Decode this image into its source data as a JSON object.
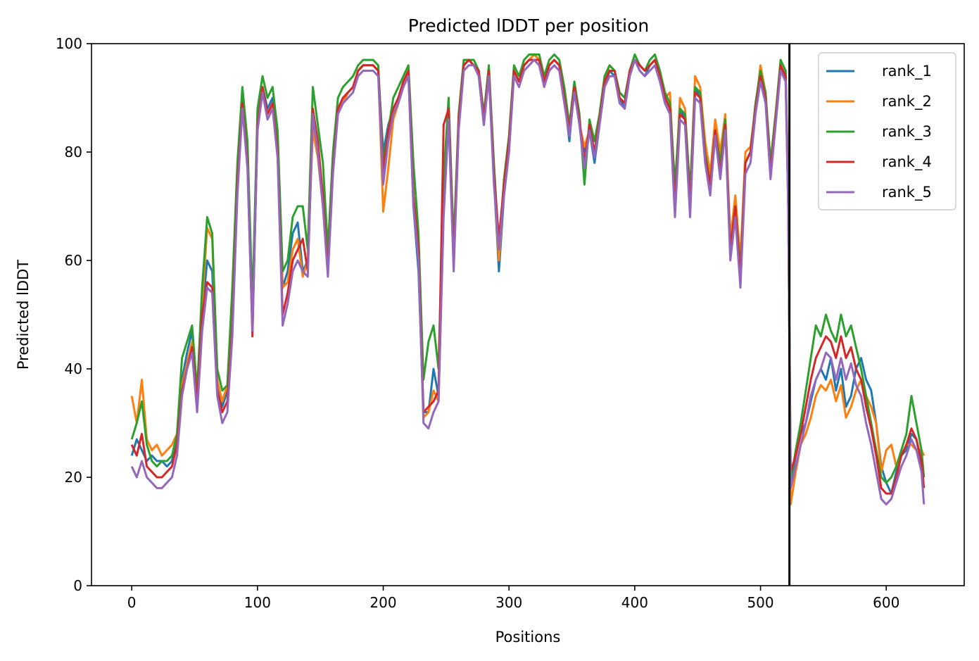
{
  "chart_data": {
    "type": "line",
    "title": "Predicted lDDT per position",
    "xlabel": "Positions",
    "ylabel": "Predicted lDDT",
    "xlim": [
      -32,
      662
    ],
    "ylim": [
      0,
      100
    ],
    "xticks": [
      0,
      100,
      200,
      300,
      400,
      500,
      600
    ],
    "yticks": [
      0,
      20,
      40,
      60,
      80,
      100
    ],
    "grid": false,
    "legend_position": "top-right",
    "vline": 523,
    "series_colors": {
      "rank_1": "#1f77b4",
      "rank_2": "#ff7f0e",
      "rank_3": "#2ca02c",
      "rank_4": "#d62728",
      "rank_5": "#9467bd"
    },
    "x": [
      0,
      4,
      8,
      12,
      16,
      20,
      24,
      28,
      32,
      36,
      40,
      44,
      48,
      52,
      56,
      60,
      64,
      68,
      72,
      76,
      80,
      84,
      88,
      92,
      96,
      100,
      104,
      108,
      112,
      116,
      120,
      124,
      128,
      132,
      136,
      140,
      144,
      148,
      152,
      156,
      160,
      164,
      168,
      172,
      176,
      180,
      184,
      188,
      192,
      196,
      200,
      204,
      208,
      212,
      216,
      220,
      224,
      228,
      232,
      236,
      240,
      244,
      248,
      252,
      256,
      260,
      264,
      268,
      272,
      276,
      280,
      284,
      288,
      292,
      296,
      300,
      304,
      308,
      312,
      316,
      320,
      324,
      328,
      332,
      336,
      340,
      344,
      348,
      352,
      356,
      360,
      364,
      368,
      372,
      376,
      380,
      384,
      388,
      392,
      396,
      400,
      404,
      408,
      412,
      416,
      420,
      424,
      428,
      432,
      436,
      440,
      444,
      448,
      452,
      456,
      460,
      464,
      468,
      472,
      476,
      480,
      484,
      488,
      492,
      496,
      500,
      504,
      508,
      512,
      516,
      520,
      522,
      524,
      528,
      532,
      536,
      540,
      544,
      548,
      552,
      556,
      560,
      564,
      568,
      572,
      576,
      580,
      584,
      588,
      592,
      596,
      600,
      604,
      608,
      612,
      616,
      620,
      624,
      628,
      630
    ],
    "series": [
      {
        "name": "rank_1",
        "values": [
          24,
          27,
          25,
          23,
          24,
          23,
          23,
          22,
          23,
          28,
          38,
          43,
          47,
          35,
          50,
          60,
          58,
          38,
          33,
          36,
          50,
          75,
          90,
          80,
          50,
          85,
          92,
          88,
          90,
          82,
          55,
          58,
          65,
          67,
          58,
          60,
          85,
          80,
          70,
          60,
          78,
          88,
          90,
          91,
          92,
          95,
          96,
          96,
          96,
          95,
          80,
          85,
          88,
          90,
          93,
          95,
          70,
          58,
          32,
          32,
          40,
          35,
          70,
          88,
          60,
          85,
          96,
          97,
          96,
          94,
          85,
          95,
          75,
          58,
          72,
          80,
          95,
          93,
          96,
          97,
          98,
          97,
          93,
          96,
          97,
          96,
          90,
          82,
          92,
          85,
          80,
          84,
          78,
          85,
          92,
          95,
          94,
          90,
          88,
          94,
          97,
          95,
          94,
          96,
          97,
          94,
          90,
          88,
          70,
          88,
          86,
          70,
          92,
          90,
          80,
          74,
          85,
          78,
          85,
          62,
          70,
          58,
          78,
          80,
          88,
          95,
          90,
          77,
          86,
          96,
          93,
          70,
          19,
          24,
          28,
          30,
          34,
          38,
          40,
          38,
          42,
          36,
          40,
          33,
          35,
          40,
          42,
          38,
          36,
          30,
          22,
          19,
          17,
          21,
          24,
          25,
          28,
          27,
          22,
          22
        ]
      },
      {
        "name": "rank_2",
        "values": [
          35,
          30,
          38,
          27,
          25,
          26,
          24,
          25,
          26,
          28,
          37,
          41,
          45,
          33,
          52,
          66,
          64,
          38,
          34,
          37,
          50,
          73,
          89,
          80,
          49,
          84,
          91,
          87,
          89,
          80,
          55,
          56,
          62,
          64,
          57,
          60,
          84,
          79,
          70,
          60,
          77,
          88,
          89,
          91,
          92,
          95,
          96,
          96,
          96,
          95,
          69,
          77,
          86,
          89,
          92,
          95,
          72,
          60,
          31,
          32,
          36,
          34,
          69,
          87,
          59,
          85,
          96,
          97,
          96,
          94,
          85,
          95,
          75,
          60,
          73,
          81,
          95,
          93,
          96,
          97,
          98,
          97,
          92,
          96,
          97,
          96,
          90,
          83,
          92,
          85,
          81,
          84,
          80,
          86,
          93,
          96,
          95,
          90,
          89,
          95,
          97,
          96,
          95,
          96,
          97,
          94,
          90,
          91,
          72,
          90,
          88,
          72,
          94,
          92,
          82,
          76,
          86,
          80,
          87,
          64,
          72,
          60,
          80,
          81,
          88,
          96,
          91,
          78,
          87,
          96,
          94,
          72,
          15,
          21,
          26,
          28,
          31,
          35,
          37,
          36,
          38,
          34,
          37,
          31,
          33,
          36,
          38,
          35,
          33,
          30,
          21,
          25,
          26,
          22,
          24,
          26,
          26,
          25,
          25,
          24
        ]
      },
      {
        "name": "rank_3",
        "values": [
          27,
          30,
          34,
          26,
          23,
          22,
          23,
          23,
          24,
          28,
          42,
          45,
          48,
          36,
          55,
          68,
          65,
          40,
          36,
          37,
          55,
          78,
          92,
          82,
          52,
          88,
          94,
          90,
          92,
          84,
          58,
          60,
          68,
          70,
          70,
          62,
          92,
          85,
          78,
          62,
          80,
          90,
          92,
          93,
          94,
          96,
          97,
          97,
          97,
          96,
          78,
          84,
          90,
          92,
          94,
          96,
          78,
          65,
          38,
          45,
          48,
          40,
          75,
          90,
          63,
          87,
          97,
          97,
          97,
          95,
          87,
          96,
          78,
          62,
          75,
          83,
          96,
          94,
          97,
          98,
          98,
          98,
          94,
          97,
          98,
          97,
          92,
          85,
          93,
          87,
          74,
          86,
          82,
          87,
          94,
          96,
          95,
          91,
          90,
          95,
          98,
          96,
          95,
          97,
          98,
          95,
          91,
          89,
          74,
          88,
          87,
          73,
          92,
          91,
          80,
          74,
          84,
          78,
          86,
          62,
          70,
          58,
          78,
          80,
          89,
          95,
          91,
          78,
          87,
          97,
          95,
          74,
          19,
          25,
          30,
          36,
          42,
          48,
          46,
          50,
          47,
          45,
          50,
          46,
          48,
          44,
          40,
          35,
          30,
          25,
          20,
          19,
          20,
          22,
          25,
          28,
          35,
          30,
          25,
          20
        ]
      },
      {
        "name": "rank_4",
        "values": [
          26,
          24,
          28,
          22,
          21,
          20,
          20,
          21,
          22,
          26,
          36,
          40,
          44,
          34,
          50,
          56,
          55,
          36,
          32,
          34,
          48,
          74,
          89,
          78,
          46,
          85,
          92,
          87,
          89,
          80,
          50,
          54,
          60,
          62,
          64,
          58,
          88,
          82,
          72,
          58,
          77,
          88,
          90,
          91,
          92,
          95,
          96,
          96,
          96,
          95,
          76,
          84,
          88,
          90,
          93,
          95,
          72,
          62,
          32,
          33,
          34,
          36,
          85,
          88,
          60,
          86,
          96,
          97,
          96,
          95,
          86,
          95,
          76,
          64,
          74,
          82,
          95,
          93,
          96,
          97,
          97,
          97,
          93,
          96,
          97,
          96,
          90,
          84,
          92,
          86,
          78,
          85,
          80,
          86,
          93,
          95,
          95,
          90,
          89,
          95,
          97,
          96,
          95,
          96,
          97,
          94,
          90,
          88,
          70,
          87,
          86,
          70,
          91,
          90,
          79,
          74,
          84,
          76,
          85,
          62,
          70,
          57,
          78,
          80,
          88,
          94,
          90,
          76,
          86,
          96,
          94,
          72,
          21,
          24,
          28,
          33,
          38,
          42,
          44,
          46,
          45,
          42,
          46,
          42,
          44,
          40,
          38,
          33,
          29,
          24,
          18,
          17,
          17,
          20,
          24,
          26,
          29,
          27,
          23,
          18
        ]
      },
      {
        "name": "rank_5",
        "values": [
          22,
          20,
          23,
          20,
          19,
          18,
          18,
          19,
          20,
          24,
          35,
          40,
          43,
          32,
          47,
          55,
          54,
          35,
          30,
          32,
          46,
          72,
          88,
          77,
          47,
          84,
          91,
          86,
          88,
          79,
          48,
          52,
          58,
          60,
          58,
          57,
          87,
          80,
          70,
          57,
          76,
          87,
          89,
          90,
          91,
          94,
          95,
          95,
          95,
          94,
          74,
          82,
          87,
          89,
          92,
          94,
          70,
          60,
          30,
          29,
          32,
          34,
          68,
          86,
          58,
          84,
          95,
          96,
          96,
          94,
          85,
          94,
          74,
          62,
          72,
          80,
          94,
          92,
          95,
          96,
          97,
          96,
          92,
          95,
          96,
          95,
          89,
          83,
          91,
          85,
          77,
          84,
          79,
          85,
          92,
          94,
          94,
          89,
          88,
          94,
          97,
          95,
          94,
          95,
          96,
          93,
          89,
          87,
          68,
          86,
          85,
          68,
          90,
          89,
          78,
          72,
          83,
          75,
          84,
          60,
          68,
          55,
          76,
          78,
          87,
          93,
          89,
          75,
          85,
          95,
          93,
          70,
          18,
          22,
          26,
          30,
          35,
          38,
          40,
          43,
          42,
          38,
          42,
          38,
          41,
          37,
          35,
          30,
          26,
          21,
          16,
          15,
          16,
          19,
          22,
          24,
          27,
          25,
          21,
          15
        ]
      }
    ]
  }
}
